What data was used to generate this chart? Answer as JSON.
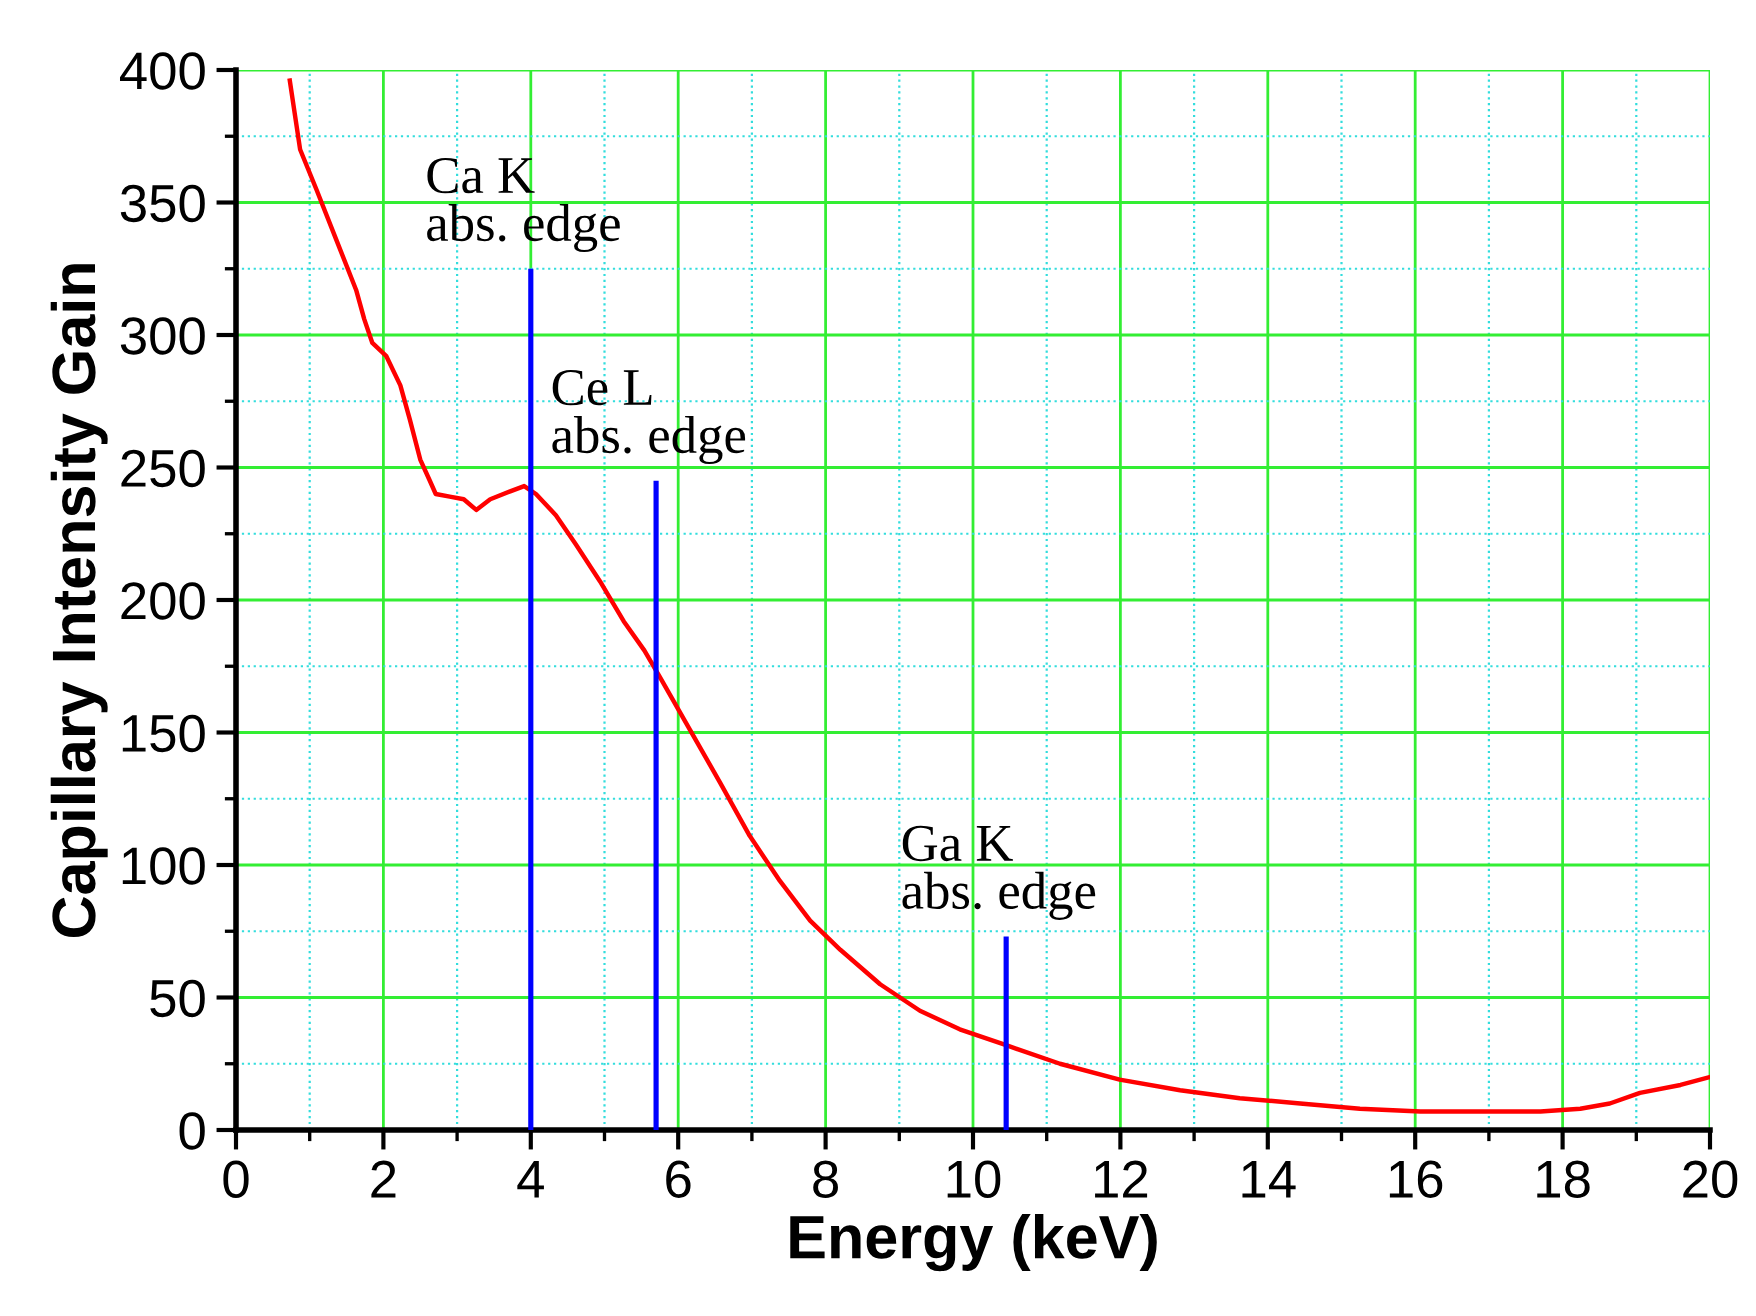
{
  "chart_data": {
    "type": "line",
    "xlabel": "Energy (keV)",
    "ylabel": "Capillary Intensity Gain",
    "xlim": [
      0,
      20
    ],
    "ylim": [
      0,
      400
    ],
    "xticks": [
      0,
      {
        "value": 1,
        "label": null
      },
      2,
      {
        "value": 3,
        "label": null
      },
      4,
      {
        "value": 5,
        "label": null
      },
      6,
      {
        "value": 7,
        "label": null
      },
      8,
      {
        "value": 9,
        "label": null
      },
      10,
      {
        "value": 11,
        "label": null
      },
      12,
      {
        "value": 13,
        "label": null
      },
      14,
      {
        "value": 15,
        "label": null
      },
      16,
      {
        "value": 17,
        "label": null
      },
      18,
      {
        "value": 19,
        "label": null
      },
      20
    ],
    "yticks": [
      0,
      {
        "value": 25,
        "label": null
      },
      50,
      {
        "value": 75,
        "label": null
      },
      100,
      {
        "value": 125,
        "label": null
      },
      150,
      {
        "value": 175,
        "label": null
      },
      200,
      {
        "value": 225,
        "label": null
      },
      250,
      {
        "value": 275,
        "label": null
      },
      300,
      {
        "value": 325,
        "label": null
      },
      350,
      {
        "value": 375,
        "label": null
      },
      400
    ],
    "grid": true,
    "legend": false,
    "series": [
      {
        "color": "#ff0000",
        "x": [
          0.73,
          0.87,
          1.09,
          1.36,
          1.63,
          1.74,
          1.85,
          2.04,
          2.23,
          2.36,
          2.5,
          2.63,
          2.71,
          2.9,
          3.09,
          3.26,
          3.45,
          3.72,
          3.91,
          4.07,
          4.34,
          4.61,
          4.94,
          5.26,
          5.54,
          5.75,
          6.16,
          6.57,
          6.97,
          7.38,
          7.79,
          8.2,
          8.74,
          9.28,
          9.82,
          10.45,
          11.18,
          11.99,
          12.81,
          13.62,
          14.44,
          15.25,
          16.07,
          17.7,
          18.24,
          18.64,
          19.05,
          19.6,
          20
        ],
        "values": [
          396,
          370,
          355,
          336,
          317,
          306,
          297,
          292,
          281,
          268,
          253,
          245,
          240,
          239,
          238,
          234,
          238,
          241,
          243,
          240,
          232,
          221,
          207,
          192,
          181,
          171,
          151,
          131,
          111,
          94,
          79,
          68,
          55,
          45,
          38,
          32,
          25,
          19,
          15,
          12,
          10,
          8,
          7,
          7,
          8,
          10,
          14,
          17,
          20
        ]
      },
      {
        "type": "bar",
        "color": "#0000ff",
        "x": [
          4.0,
          5.7,
          10.45
        ],
        "values": [
          325,
          245,
          73
        ]
      }
    ],
    "annotations": [
      {
        "text": "Ca K\nabs. edge",
        "x": 4.0,
        "y": 325
      },
      {
        "text": "Ce L\nabs. edge",
        "x": 5.7,
        "y": 245
      },
      {
        "text": "Ga K\nabs. edge",
        "x": 10.45,
        "y": 73
      }
    ]
  }
}
